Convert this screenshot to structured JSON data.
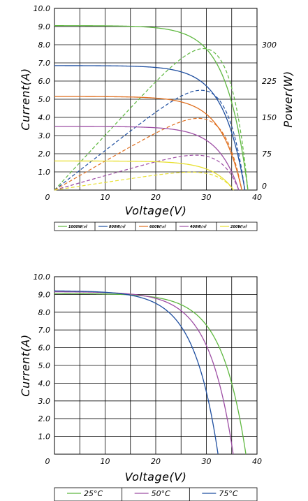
{
  "chart_data": [
    {
      "type": "line",
      "xlabel": "Voltage(V)",
      "ylabel": "Current(A)",
      "y2label": "Power(W)",
      "xlim": [
        0,
        40
      ],
      "ylim": [
        0,
        10
      ],
      "y2lim": [
        0,
        375
      ],
      "x_ticks": [
        "0",
        "10",
        "20",
        "30",
        "40"
      ],
      "y_ticks": [
        "10.0",
        "9.0",
        "8.0",
        "7.0",
        "6.0",
        "5.0",
        "4.0",
        "3.0",
        "2.0",
        "1.0"
      ],
      "y2_ticks": [
        "300",
        "225",
        "150",
        "75",
        "0"
      ],
      "grid": true,
      "legend_position": "bottom",
      "series": [
        {
          "name": "1000W/㎡",
          "color": "#5fb840",
          "isc": 9.05,
          "voc": 38.2,
          "knee": 4.2,
          "pmax": 292,
          "vmp": 29.5
        },
        {
          "name": "800W/㎡",
          "color": "#1f4fa0",
          "isc": 6.85,
          "voc": 37.6,
          "knee": 4.2,
          "pmax": 206,
          "vmp": 30.0
        },
        {
          "name": "600W/㎡",
          "color": "#e07020",
          "isc": 5.15,
          "voc": 37.0,
          "knee": 4.2,
          "pmax": 148,
          "vmp": 29.8
        },
        {
          "name": "400W/㎡",
          "color": "#9e4fa5",
          "isc": 3.5,
          "voc": 36.4,
          "knee": 4.2,
          "pmax": 72,
          "vmp": 29.5
        },
        {
          "name": "200W/㎡",
          "color": "#e8e030",
          "isc": 1.6,
          "voc": 35.4,
          "knee": 4.2,
          "pmax": 37,
          "vmp": 29.5
        }
      ]
    },
    {
      "type": "line",
      "xlabel": "Voltage(V)",
      "ylabel": "Current(A)",
      "xlim": [
        0,
        40
      ],
      "ylim": [
        0,
        10
      ],
      "x_ticks": [
        "0",
        "10",
        "20",
        "30",
        "40"
      ],
      "y_ticks": [
        "10.0",
        "9.0",
        "8.0",
        "7.0",
        "6.0",
        "5.0",
        "4.0",
        "3.0",
        "2.0",
        "1.0"
      ],
      "grid": true,
      "legend_position": "bottom",
      "series": [
        {
          "name": "25°C",
          "color": "#5fb840",
          "isc": 9.05,
          "voc": 37.8,
          "knee": 4.8
        },
        {
          "name": "50°C",
          "color": "#9e4fa5",
          "isc": 9.15,
          "voc": 35.3,
          "knee": 4.8
        },
        {
          "name": "75°C",
          "color": "#1f4fa0",
          "isc": 9.2,
          "voc": 32.3,
          "knee": 4.8
        }
      ]
    }
  ]
}
